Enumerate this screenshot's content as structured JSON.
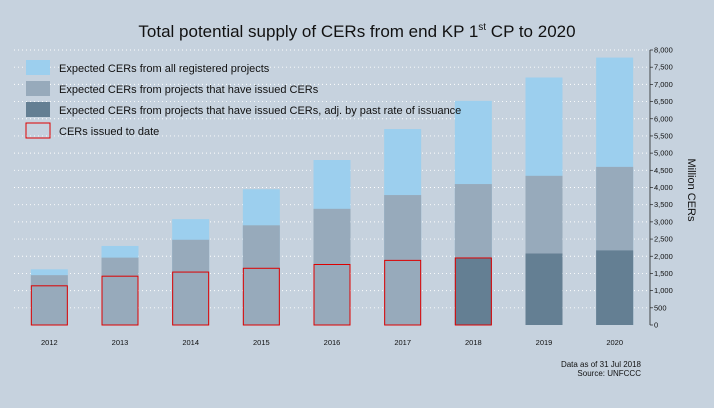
{
  "chart_data": {
    "type": "bar",
    "title": "Total potential supply of CERs from end KP 1",
    "title_superscript": "st",
    "title_suffix": " CP to 2020",
    "ylabel": "Million CERs",
    "ylim": [
      0,
      8000
    ],
    "yticks": [
      "0",
      "500",
      "1,000",
      "1,500",
      "2,000",
      "2,500",
      "3,000",
      "3,500",
      "4,000",
      "4,500",
      "5,000",
      "5,500",
      "6,000",
      "6,500",
      "7,000",
      "7,500",
      "8,000"
    ],
    "ytick_values": [
      0,
      500,
      1000,
      1500,
      2000,
      2500,
      3000,
      3500,
      4000,
      4500,
      5000,
      5500,
      6000,
      6500,
      7000,
      7500,
      8000
    ],
    "categories": [
      "2012",
      "2013",
      "2014",
      "2015",
      "2016",
      "2017",
      "2018",
      "2019",
      "2020"
    ],
    "series": [
      {
        "name": "Expected CERs from all registered projects",
        "color": "#9ccfee",
        "values": [
          1620,
          2300,
          3080,
          3950,
          4800,
          5700,
          6520,
          7200,
          7780
        ]
      },
      {
        "name": "Expected CERs from projects that have issued CERs",
        "color": "#97aabb",
        "values": [
          1450,
          1960,
          2480,
          2900,
          3380,
          3780,
          4100,
          4340,
          4600
        ]
      },
      {
        "name": "Expected CERs from projects that have issued CERs, adj. by past rate of issuance",
        "color": "#647f93",
        "values": [
          0,
          0,
          0,
          0,
          0,
          0,
          1950,
          2080,
          2170
        ]
      },
      {
        "name": "CERs issued to date",
        "color": "#dd0000",
        "values": [
          1140,
          1420,
          1540,
          1650,
          1760,
          1880,
          1950,
          null,
          null
        ]
      }
    ],
    "legend_position": "top-left",
    "grid": true
  },
  "footnote": {
    "date": "Data as of 31 Jul 2018",
    "source": "Source: UNFCCC"
  }
}
